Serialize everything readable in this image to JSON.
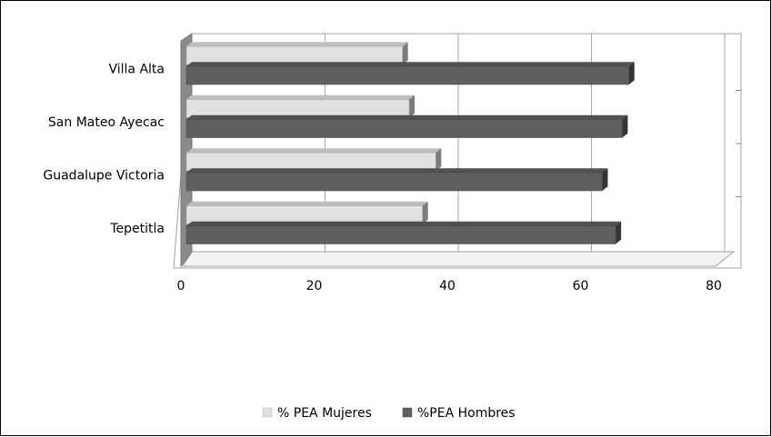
{
  "chart_data": {
    "type": "bar",
    "orientation": "horizontal",
    "style": "3d-clustered",
    "categories": [
      "Villa Alta",
      "San Mateo Ayecac",
      "Guadalupe Victoria",
      "Tepetitla"
    ],
    "series": [
      {
        "name": "% PEA Mujeres",
        "values": [
          33,
          34,
          38,
          36
        ],
        "color": "#e0e0e0"
      },
      {
        "name": "%PEA Hombres",
        "values": [
          67,
          66,
          63,
          65
        ],
        "color": "#5f5f5f"
      }
    ],
    "xlim": [
      0,
      80
    ],
    "xticks": [
      "0",
      "20",
      "40",
      "60",
      "80"
    ],
    "grid": true,
    "legend_position": "bottom",
    "title": "",
    "xlabel": "",
    "ylabel": ""
  }
}
